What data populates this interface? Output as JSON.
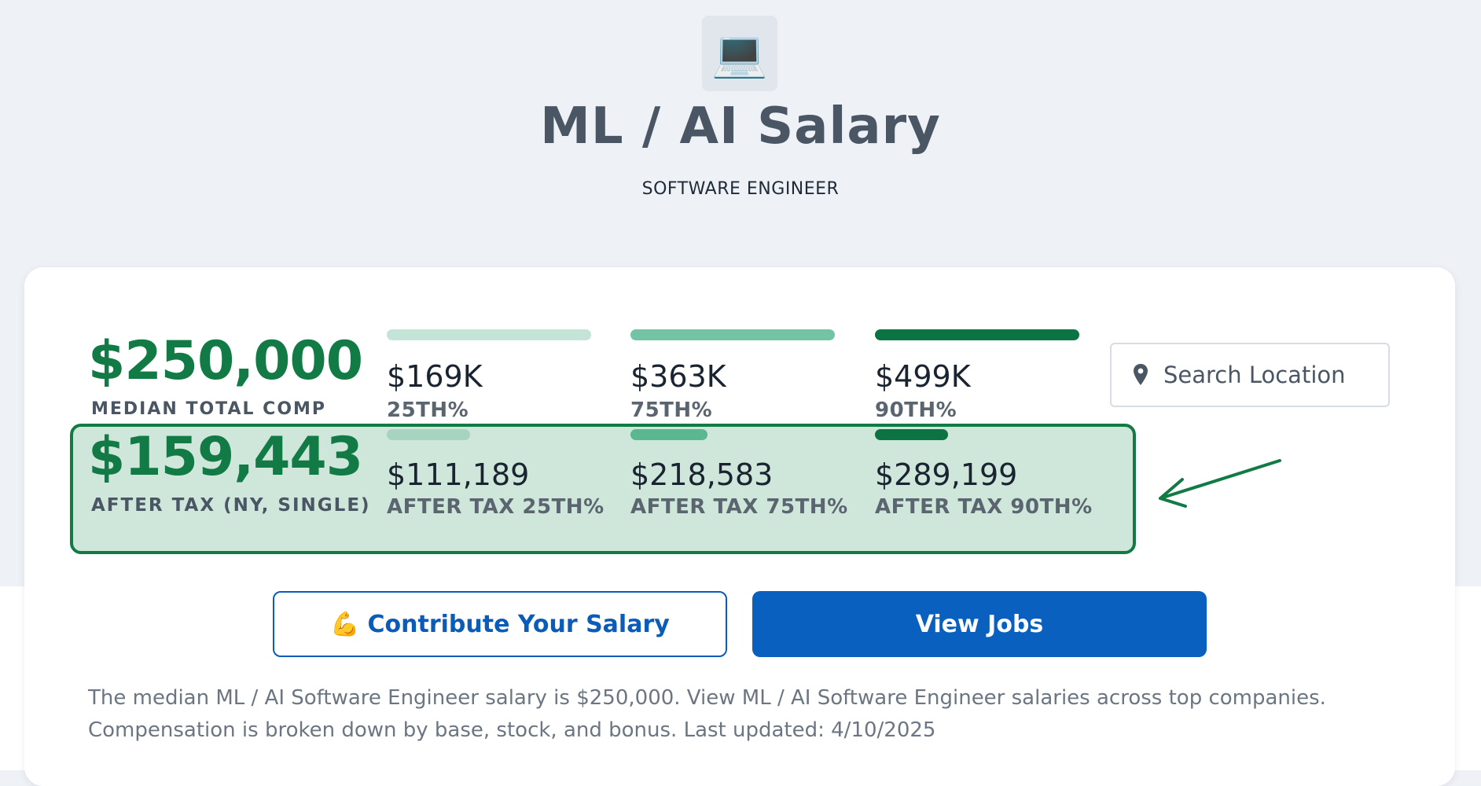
{
  "header": {
    "icon_emoji": "💻",
    "icon_name": "laptop-icon",
    "title": "ML / AI Salary",
    "subtitle": "SOFTWARE ENGINEER"
  },
  "median": {
    "value": "$250,000",
    "label": "MEDIAN TOTAL COMP"
  },
  "percentiles": [
    {
      "value": "$169K",
      "label": "25TH%",
      "bar_color": "#c5e4d8"
    },
    {
      "value": "$363K",
      "label": "75TH%",
      "bar_color": "#72c4a4"
    },
    {
      "value": "$499K",
      "label": "90TH%",
      "bar_color": "#0b7442"
    }
  ],
  "search": {
    "placeholder": "Search Location",
    "icon_name": "location-pin-icon"
  },
  "after_tax": {
    "value": "$159,443",
    "label": "AFTER TAX (NY, SINGLE)",
    "percentiles": [
      {
        "value": "$111,189",
        "label": "AFTER TAX 25TH%",
        "bar_color": "#a7d4c0"
      },
      {
        "value": "$218,583",
        "label": "AFTER TAX 75TH%",
        "bar_color": "#5ab790"
      },
      {
        "value": "$289,199",
        "label": "AFTER TAX 90TH%",
        "bar_color": "#0b7442"
      }
    ]
  },
  "buttons": {
    "contribute_emoji": "💪",
    "contribute_label": "Contribute Your Salary",
    "jobs_label": "View Jobs"
  },
  "description": {
    "line1": "The median ML / AI Software Engineer salary is $250,000. View ML / AI Software Engineer salaries across top companies.",
    "line2": "Compensation is broken down by base, stock, and bonus. Last updated: 4/10/2025"
  },
  "colors": {
    "accent_green": "#117a45",
    "highlight_fill": "#cfe6da",
    "primary_blue": "#0a60bf"
  }
}
